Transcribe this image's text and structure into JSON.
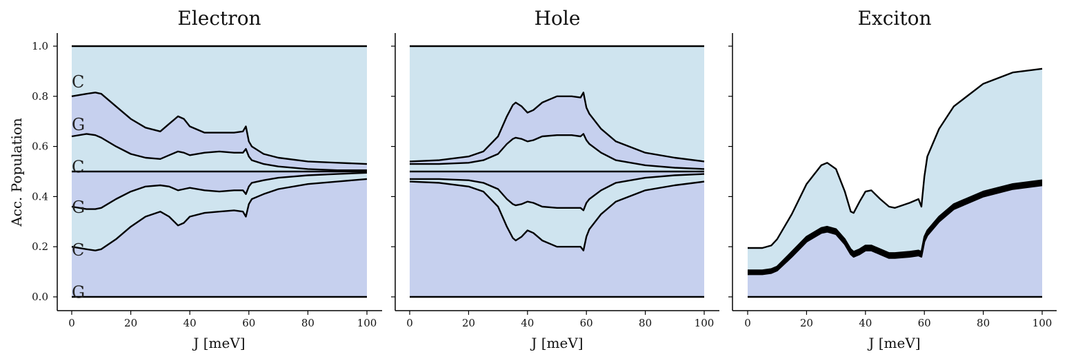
{
  "chart_data": [
    {
      "type": "area",
      "title": "Electron",
      "xlabel": "J [meV]",
      "ylabel": "Acc. Population",
      "xlim": [
        -5,
        105
      ],
      "ylim": [
        -0.05,
        1.05
      ],
      "xticks": [
        "0",
        "20",
        "40",
        "60",
        "80",
        "100"
      ],
      "yticks": [
        "0.0",
        "0.2",
        "0.4",
        "0.6",
        "0.8",
        "1.0"
      ],
      "band_labels": [
        {
          "text": "C",
          "y": 0.86
        },
        {
          "text": "G",
          "y": 0.69
        },
        {
          "text": "C",
          "y": 0.52
        },
        {
          "text": "G",
          "y": 0.36
        },
        {
          "text": "C",
          "y": 0.19
        },
        {
          "text": "G",
          "y": 0.02
        }
      ],
      "fill_colors": [
        "#c6d0ee",
        "#cfe4ef",
        "#c6d0ee",
        "#cfe4ef",
        "#c6d0ee",
        "#cfe4ef"
      ],
      "line_color": "#000000",
      "x": [
        0,
        5,
        8,
        10,
        15,
        20,
        25,
        30,
        33,
        36,
        38,
        40,
        45,
        50,
        55,
        58,
        59,
        60,
        61,
        65,
        70,
        80,
        90,
        100
      ],
      "series": [
        {
          "values": [
            0.2,
            0.19,
            0.185,
            0.19,
            0.23,
            0.28,
            0.32,
            0.34,
            0.32,
            0.285,
            0.295,
            0.32,
            0.335,
            0.34,
            0.345,
            0.34,
            0.32,
            0.37,
            0.39,
            0.41,
            0.43,
            0.45,
            0.46,
            0.47
          ]
        },
        {
          "values": [
            0.36,
            0.35,
            0.35,
            0.355,
            0.39,
            0.42,
            0.44,
            0.445,
            0.44,
            0.425,
            0.43,
            0.435,
            0.425,
            0.42,
            0.425,
            0.425,
            0.41,
            0.44,
            0.455,
            0.465,
            0.475,
            0.485,
            0.49,
            0.495
          ]
        },
        {
          "values": [
            0.5,
            0.5,
            0.5,
            0.5,
            0.5,
            0.5,
            0.5,
            0.5,
            0.5,
            0.5,
            0.5,
            0.5,
            0.5,
            0.5,
            0.5,
            0.5,
            0.5,
            0.5,
            0.5,
            0.5,
            0.5,
            0.5,
            0.5,
            0.5
          ]
        },
        {
          "values": [
            0.64,
            0.65,
            0.645,
            0.635,
            0.6,
            0.57,
            0.555,
            0.55,
            0.565,
            0.58,
            0.575,
            0.565,
            0.575,
            0.58,
            0.575,
            0.575,
            0.59,
            0.56,
            0.545,
            0.53,
            0.52,
            0.51,
            0.505,
            0.505
          ]
        },
        {
          "values": [
            0.8,
            0.81,
            0.815,
            0.81,
            0.76,
            0.71,
            0.675,
            0.66,
            0.69,
            0.72,
            0.71,
            0.68,
            0.655,
            0.655,
            0.655,
            0.66,
            0.68,
            0.62,
            0.6,
            0.57,
            0.555,
            0.54,
            0.535,
            0.53
          ]
        },
        {
          "values": [
            1,
            1,
            1,
            1,
            1,
            1,
            1,
            1,
            1,
            1,
            1,
            1,
            1,
            1,
            1,
            1,
            1,
            1,
            1,
            1,
            1,
            1,
            1,
            1
          ]
        }
      ]
    },
    {
      "type": "area",
      "title": "Hole",
      "xlabel": "J [meV]",
      "ylabel": "",
      "xlim": [
        -5,
        105
      ],
      "ylim": [
        -0.05,
        1.05
      ],
      "xticks": [
        "0",
        "20",
        "40",
        "60",
        "80",
        "100"
      ],
      "yticks": [],
      "band_labels": [],
      "fill_colors": [
        "#c6d0ee",
        "#cfe4ef",
        "#c6d0ee",
        "#cfe4ef",
        "#c6d0ee",
        "#cfe4ef"
      ],
      "line_color": "#000000",
      "x": [
        0,
        10,
        20,
        25,
        30,
        33,
        35,
        36,
        38,
        40,
        42,
        45,
        50,
        55,
        58,
        59,
        60,
        61,
        65,
        70,
        80,
        90,
        100
      ],
      "series": [
        {
          "values": [
            0.46,
            0.455,
            0.44,
            0.42,
            0.36,
            0.28,
            0.235,
            0.225,
            0.24,
            0.265,
            0.255,
            0.225,
            0.2,
            0.2,
            0.2,
            0.185,
            0.24,
            0.27,
            0.33,
            0.38,
            0.425,
            0.445,
            0.46
          ]
        },
        {
          "values": [
            0.47,
            0.47,
            0.465,
            0.455,
            0.43,
            0.39,
            0.37,
            0.365,
            0.37,
            0.38,
            0.375,
            0.36,
            0.355,
            0.355,
            0.355,
            0.345,
            0.375,
            0.39,
            0.425,
            0.455,
            0.475,
            0.485,
            0.49
          ]
        },
        {
          "values": [
            0.5,
            0.5,
            0.5,
            0.5,
            0.5,
            0.5,
            0.5,
            0.5,
            0.5,
            0.5,
            0.5,
            0.5,
            0.5,
            0.5,
            0.5,
            0.5,
            0.5,
            0.5,
            0.5,
            0.5,
            0.5,
            0.5,
            0.5
          ]
        },
        {
          "values": [
            0.53,
            0.53,
            0.535,
            0.545,
            0.57,
            0.61,
            0.63,
            0.635,
            0.63,
            0.62,
            0.625,
            0.64,
            0.645,
            0.645,
            0.64,
            0.65,
            0.625,
            0.61,
            0.575,
            0.545,
            0.525,
            0.515,
            0.51
          ]
        },
        {
          "values": [
            0.54,
            0.545,
            0.56,
            0.58,
            0.64,
            0.72,
            0.765,
            0.775,
            0.76,
            0.735,
            0.745,
            0.775,
            0.8,
            0.8,
            0.795,
            0.815,
            0.755,
            0.73,
            0.67,
            0.62,
            0.575,
            0.555,
            0.54
          ]
        },
        {
          "values": [
            1,
            1,
            1,
            1,
            1,
            1,
            1,
            1,
            1,
            1,
            1,
            1,
            1,
            1,
            1,
            1,
            1,
            1,
            1,
            1,
            1,
            1,
            1
          ]
        }
      ]
    },
    {
      "type": "area",
      "title": "Exciton",
      "xlabel": "J [meV]",
      "ylabel": "",
      "xlim": [
        -5,
        105
      ],
      "ylim": [
        -0.05,
        1.05
      ],
      "xticks": [
        "0",
        "20",
        "40",
        "60",
        "80",
        "100"
      ],
      "yticks": [],
      "band_labels": [],
      "fill_colors": [
        "#c6d0ee",
        "#c6d0ee",
        "#c6d0ee",
        "#c6d0ee",
        "#c6d0ee",
        "#cfe4ef"
      ],
      "line_color": "#000000",
      "x": [
        0,
        5,
        8,
        10,
        15,
        20,
        25,
        27,
        30,
        33,
        35,
        36,
        38,
        40,
        42,
        45,
        48,
        50,
        55,
        58,
        59,
        60,
        61,
        65,
        70,
        80,
        90,
        100
      ],
      "series": [
        {
          "values": [
            0.09,
            0.09,
            0.095,
            0.105,
            0.16,
            0.22,
            0.255,
            0.26,
            0.25,
            0.21,
            0.17,
            0.16,
            0.17,
            0.185,
            0.185,
            0.17,
            0.155,
            0.155,
            0.16,
            0.165,
            0.16,
            0.22,
            0.245,
            0.3,
            0.35,
            0.4,
            0.43,
            0.445
          ]
        },
        {
          "values": [
            0.095,
            0.095,
            0.1,
            0.11,
            0.165,
            0.225,
            0.26,
            0.265,
            0.255,
            0.215,
            0.175,
            0.165,
            0.175,
            0.19,
            0.19,
            0.175,
            0.16,
            0.16,
            0.165,
            0.17,
            0.165,
            0.225,
            0.25,
            0.305,
            0.355,
            0.405,
            0.435,
            0.45
          ]
        },
        {
          "values": [
            0.1,
            0.1,
            0.105,
            0.115,
            0.17,
            0.23,
            0.265,
            0.27,
            0.26,
            0.22,
            0.18,
            0.17,
            0.18,
            0.195,
            0.195,
            0.18,
            0.165,
            0.165,
            0.17,
            0.175,
            0.17,
            0.23,
            0.255,
            0.31,
            0.36,
            0.41,
            0.44,
            0.455
          ]
        },
        {
          "values": [
            0.103,
            0.103,
            0.108,
            0.118,
            0.175,
            0.235,
            0.27,
            0.275,
            0.265,
            0.225,
            0.185,
            0.175,
            0.185,
            0.2,
            0.2,
            0.185,
            0.17,
            0.17,
            0.175,
            0.18,
            0.175,
            0.235,
            0.26,
            0.315,
            0.365,
            0.415,
            0.445,
            0.46
          ]
        },
        {
          "values": [
            0.106,
            0.106,
            0.111,
            0.121,
            0.18,
            0.24,
            0.275,
            0.28,
            0.27,
            0.23,
            0.19,
            0.18,
            0.19,
            0.205,
            0.205,
            0.19,
            0.175,
            0.175,
            0.18,
            0.185,
            0.18,
            0.24,
            0.265,
            0.32,
            0.37,
            0.42,
            0.45,
            0.465
          ]
        },
        {
          "values": [
            0.195,
            0.195,
            0.205,
            0.23,
            0.33,
            0.45,
            0.525,
            0.535,
            0.51,
            0.42,
            0.34,
            0.335,
            0.38,
            0.42,
            0.425,
            0.39,
            0.36,
            0.355,
            0.375,
            0.39,
            0.36,
            0.48,
            0.56,
            0.67,
            0.76,
            0.85,
            0.895,
            0.91
          ]
        }
      ]
    }
  ]
}
